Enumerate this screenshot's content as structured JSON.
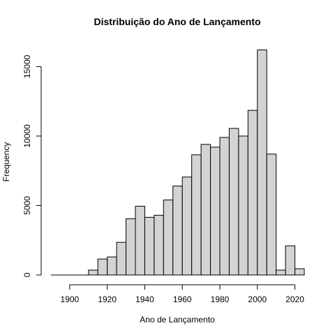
{
  "chart_data": {
    "type": "bar",
    "title": "Distribuição do Ano de Lançamento",
    "xlabel": "Ano de Lançamento",
    "ylabel": "Frequency",
    "bin_width": 5,
    "bins": [
      [
        1890,
        1895,
        0
      ],
      [
        1895,
        1900,
        0
      ],
      [
        1900,
        1905,
        0
      ],
      [
        1905,
        1910,
        0
      ],
      [
        1910,
        1915,
        350
      ],
      [
        1915,
        1920,
        1150
      ],
      [
        1920,
        1925,
        1300
      ],
      [
        1925,
        1930,
        2350
      ],
      [
        1930,
        1935,
        4050
      ],
      [
        1935,
        1940,
        4950
      ],
      [
        1940,
        1945,
        4150
      ],
      [
        1945,
        1950,
        4300
      ],
      [
        1950,
        1955,
        5400
      ],
      [
        1955,
        1960,
        6400
      ],
      [
        1960,
        1965,
        7050
      ],
      [
        1965,
        1970,
        8650
      ],
      [
        1970,
        1975,
        9400
      ],
      [
        1975,
        1980,
        9200
      ],
      [
        1980,
        1985,
        9900
      ],
      [
        1985,
        1990,
        10550
      ],
      [
        1990,
        1995,
        10000
      ],
      [
        1995,
        2000,
        11850
      ],
      [
        2000,
        2005,
        16200
      ],
      [
        2005,
        2010,
        8700
      ],
      [
        2010,
        2015,
        350
      ],
      [
        2015,
        2020,
        2100
      ],
      [
        2020,
        2025,
        450
      ]
    ],
    "xlim": [
      1890,
      2025
    ],
    "ylim": [
      0,
      16200
    ],
    "x_ticks": [
      1900,
      1920,
      1940,
      1960,
      1980,
      2000,
      2020
    ],
    "y_ticks": [
      0,
      5000,
      10000,
      15000
    ],
    "bar_color": "#d3d3d3",
    "edge_color": "#000000",
    "grid": false,
    "legend": "none"
  }
}
